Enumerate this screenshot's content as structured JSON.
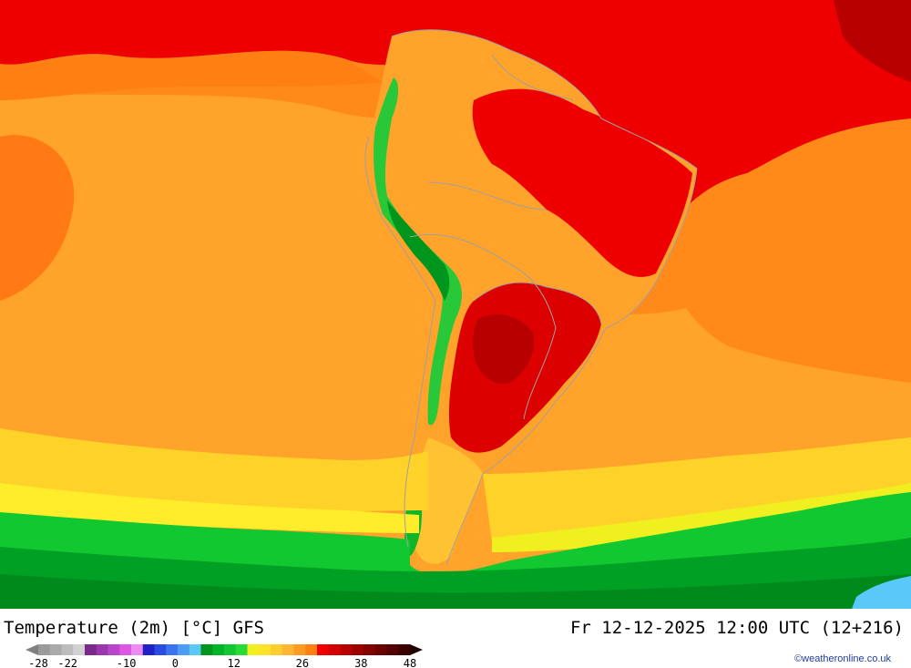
{
  "title": "Temperature (2m) [°C] GFS",
  "datetime": "Fr 12-12-2025 12:00 UTC (12+216)",
  "credit": "©weatheronline.co.uk",
  "legend": {
    "colors": [
      "#9a9a9a",
      "#aaaaaa",
      "#bcbcbc",
      "#d2d2d2",
      "#7a2a8c",
      "#9a36ae",
      "#bb44cc",
      "#dd55e4",
      "#ee88f2",
      "#2020c8",
      "#2a4ae0",
      "#3a74ee",
      "#4a9cf4",
      "#5ac8f8",
      "#00961e",
      "#00b428",
      "#12c830",
      "#28dc38",
      "#f0f020",
      "#ffe22a",
      "#ffcc32",
      "#ffb432",
      "#ff9a22",
      "#ff8012",
      "#ee0000",
      "#d20000",
      "#b80000",
      "#9e0000",
      "#840000",
      "#6a0000",
      "#540000",
      "#3a0000"
    ],
    "tick_labels": [
      "-28",
      "-22",
      "-10",
      "0",
      "12",
      "26",
      "38",
      "48"
    ],
    "tick_values": [
      -28,
      -22,
      -10,
      0,
      12,
      26,
      38,
      48
    ]
  }
}
